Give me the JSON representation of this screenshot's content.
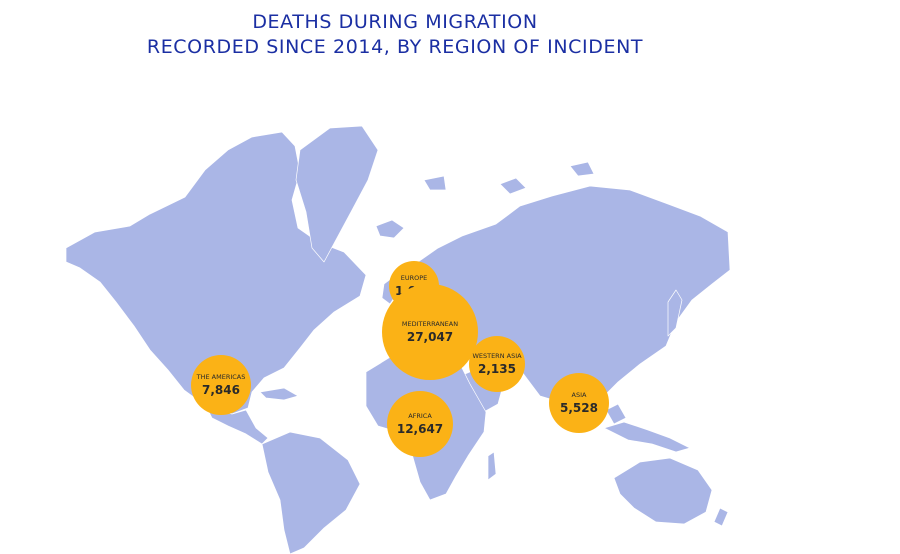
{
  "title": {
    "line1": "DEATHS DURING MIGRATION",
    "line2": "RECORDED SINCE 2014, BY REGION OF INCIDENT"
  },
  "colors": {
    "title": "#1b2fa3",
    "land": "#aab6e6",
    "bubble": "#fbb216",
    "label": "#2a2a2a"
  },
  "regions": [
    {
      "id": "europe",
      "name": "EUROPE",
      "value": "1,013",
      "deaths": 1013
    },
    {
      "id": "mediterranean",
      "name": "MEDITERRANEAN",
      "value": "27,047",
      "deaths": 27047
    },
    {
      "id": "western-asia",
      "name": "WESTERN ASIA",
      "value": "2,135",
      "deaths": 2135
    },
    {
      "id": "the-americas",
      "name": "THE AMERICAS",
      "value": "7,846",
      "deaths": 7846
    },
    {
      "id": "africa",
      "name": "AFRICA",
      "value": "12,647",
      "deaths": 12647
    },
    {
      "id": "asia",
      "name": "ASIA",
      "value": "5,528",
      "deaths": 5528
    }
  ]
}
